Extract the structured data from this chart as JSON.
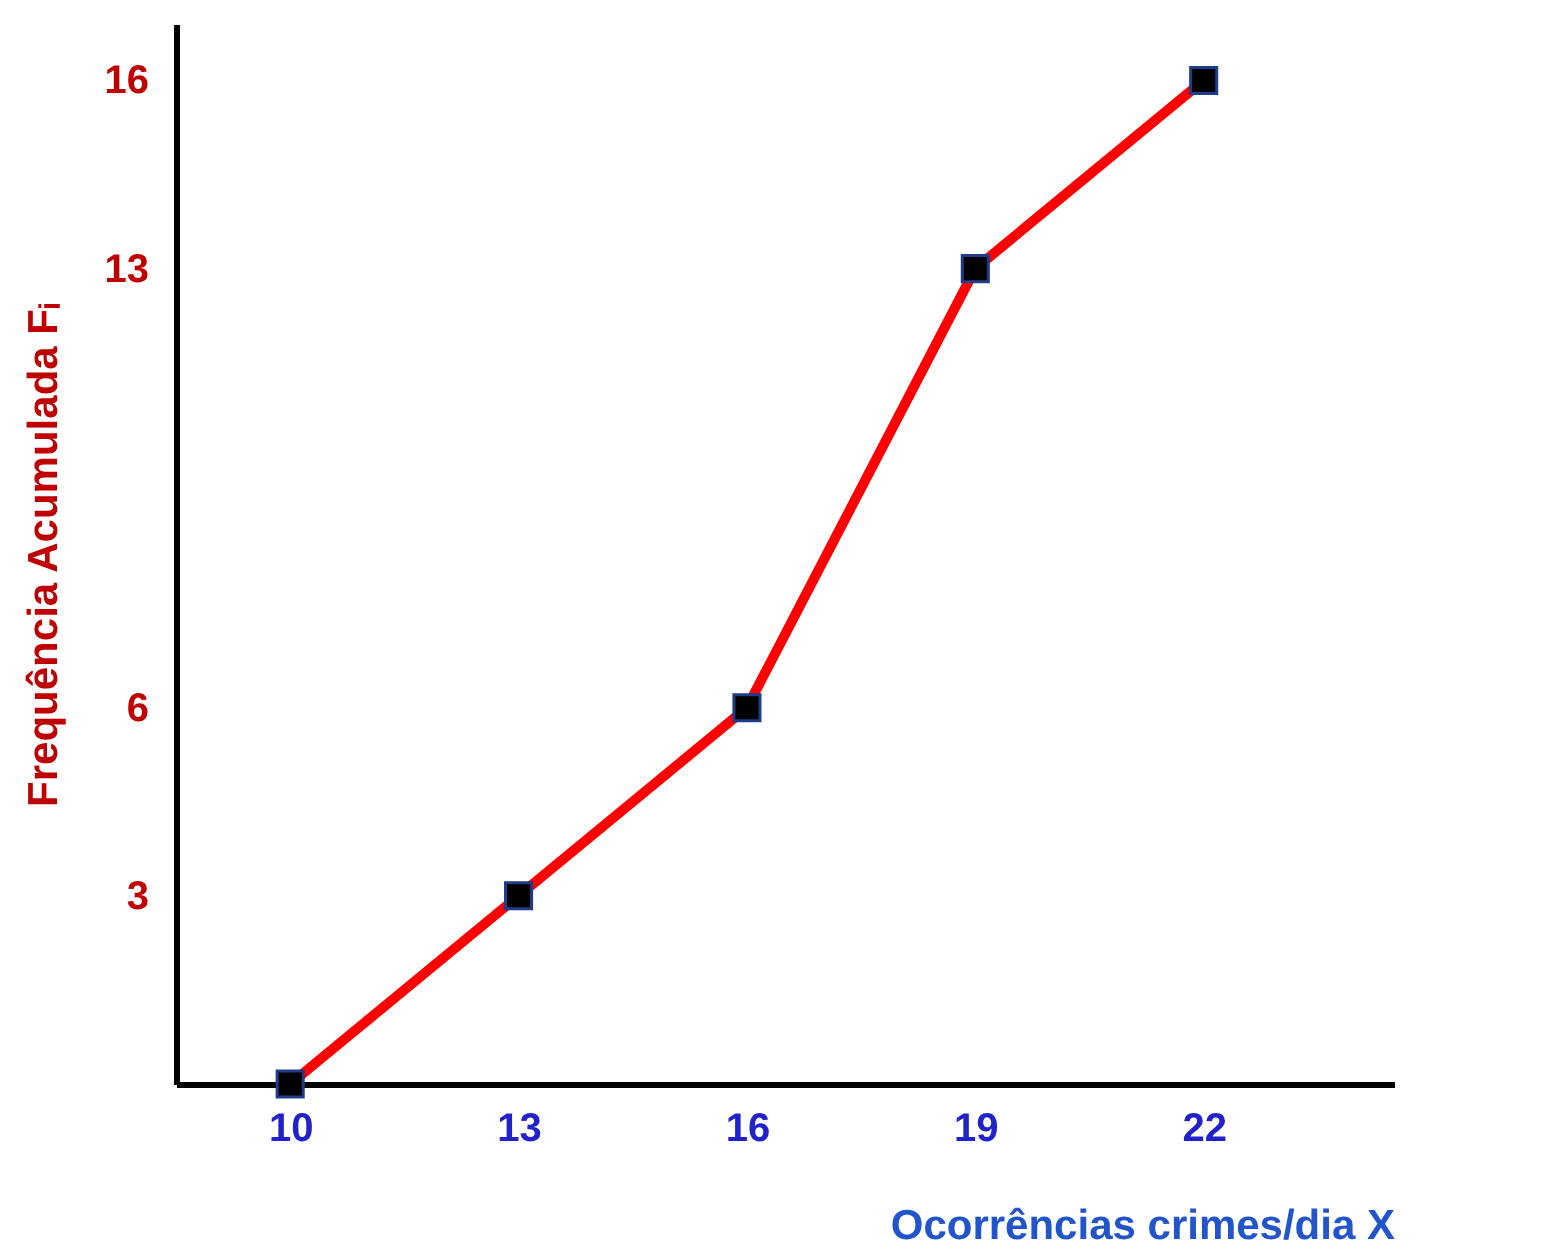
{
  "chart_data": {
    "type": "line",
    "xlabel": "Ocorrências crimes/dia X",
    "ylabel": "Frequência Acumulada Fᵢ",
    "x": [
      10,
      13,
      16,
      19,
      22
    ],
    "series": [
      {
        "color": "#ff0000",
        "values": [
          0,
          3,
          6,
          13,
          16
        ]
      }
    ],
    "xlim": [
      8.5,
      24.5
    ],
    "xticks": [
      10,
      13,
      16,
      19,
      22
    ],
    "ylim": [
      0,
      16.9
    ],
    "yticks": [
      3,
      6,
      13,
      16
    ],
    "marker": "square",
    "grid": false
  }
}
